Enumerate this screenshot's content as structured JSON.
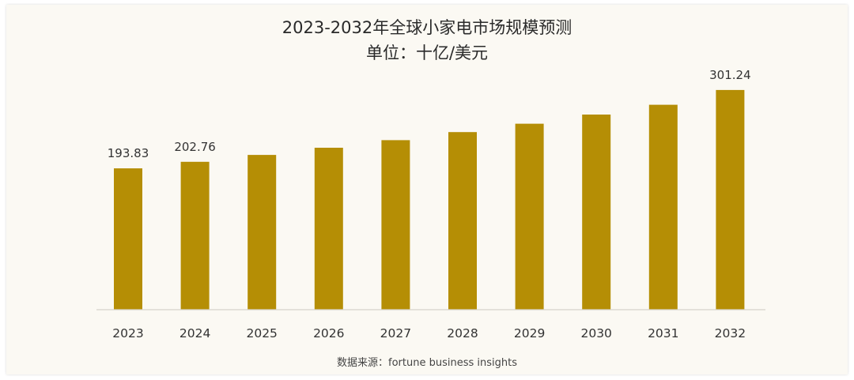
{
  "chart_data": {
    "type": "bar",
    "title": "2023-2032年全球小家电市场规模预测",
    "subtitle": "单位：十亿/美元",
    "categories": [
      "2023",
      "2024",
      "2025",
      "2026",
      "2027",
      "2028",
      "2029",
      "2030",
      "2031",
      "2032"
    ],
    "values": [
      193.83,
      202.76,
      212.2,
      222.1,
      232.5,
      243.5,
      255.0,
      267.5,
      281.0,
      301.24
    ],
    "data_labels": {
      "0": "193.83",
      "1": "202.76",
      "9": "301.24"
    },
    "bar_color": "#b58e05",
    "grid": false,
    "legend": "none",
    "source": "数据来源：fortune business insights"
  }
}
